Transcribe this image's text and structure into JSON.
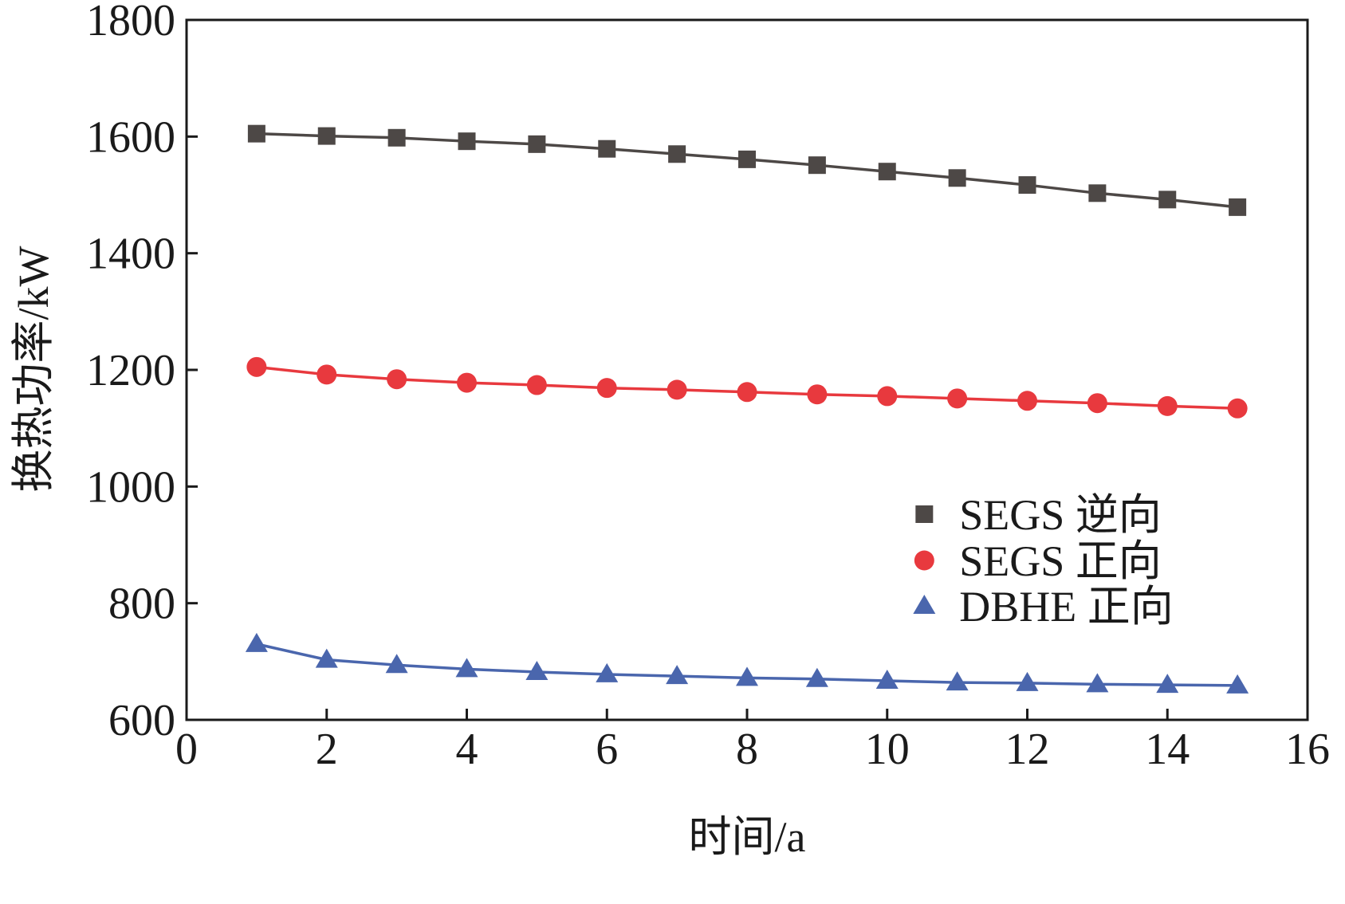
{
  "chart_data": {
    "type": "line",
    "x": [
      1,
      2,
      3,
      4,
      5,
      6,
      7,
      8,
      9,
      10,
      11,
      12,
      13,
      14,
      15
    ],
    "series": [
      {
        "name": "SEGS 逆向",
        "color": "#4d4846",
        "marker": "square",
        "values": [
          1605,
          1601,
          1598,
          1592,
          1587,
          1579,
          1570,
          1561,
          1551,
          1540,
          1529,
          1517,
          1503,
          1492,
          1479
        ]
      },
      {
        "name": "SEGS 正向",
        "color": "#e8393e",
        "marker": "circle",
        "values": [
          1205,
          1192,
          1184,
          1178,
          1174,
          1169,
          1166,
          1162,
          1158,
          1155,
          1151,
          1147,
          1143,
          1138,
          1134
        ]
      },
      {
        "name": "DBHE 正向",
        "color": "#4a66ad",
        "marker": "triangle",
        "values": [
          730,
          703,
          694,
          687,
          682,
          678,
          675,
          672,
          670,
          667,
          664,
          663,
          661,
          660,
          659
        ]
      }
    ],
    "xlabel": "时间/a",
    "ylabel": "换热功率/kW",
    "xlim": [
      0,
      16
    ],
    "ylim": [
      600,
      1800
    ],
    "xticks": [
      0,
      2,
      4,
      6,
      8,
      10,
      12,
      14,
      16
    ],
    "yticks": [
      600,
      800,
      1000,
      1200,
      1400,
      1600,
      1800
    ],
    "grid": false,
    "legend_position": "center-right"
  }
}
